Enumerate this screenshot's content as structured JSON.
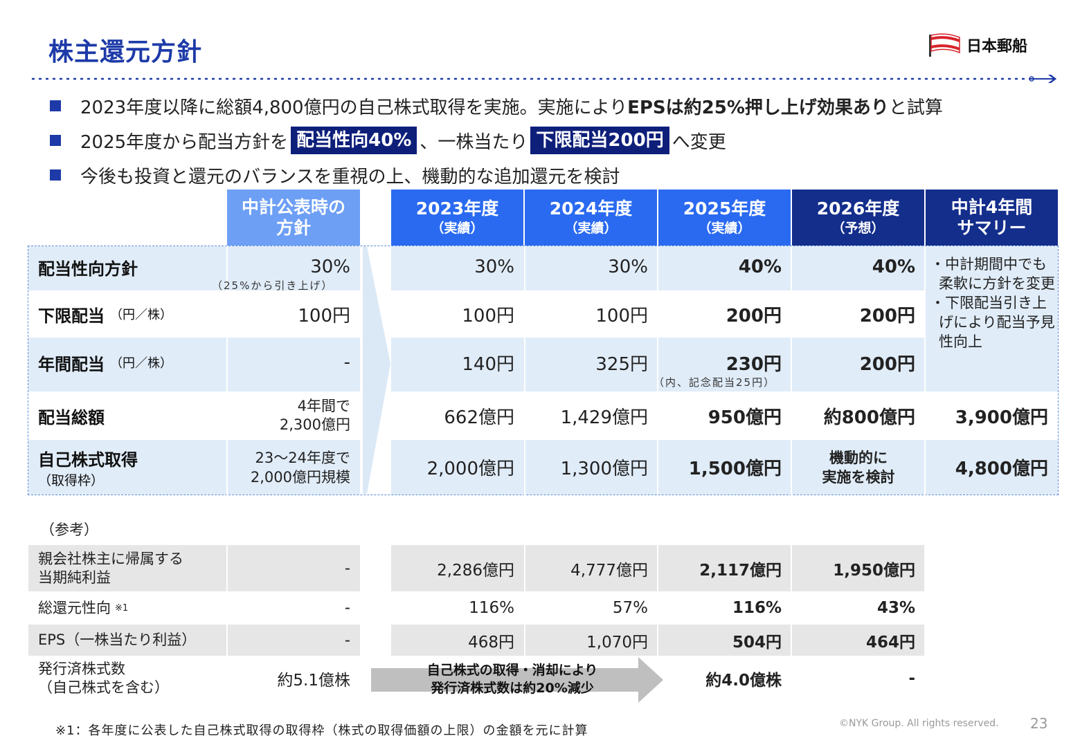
{
  "title": "株主還元方針",
  "logo_text": "日本郵船",
  "bullets": {
    "b1_pre": "2023年度以降に総額4,800億円の自己株式取得を実施。実施により",
    "b1_bold": "EPSは約25%押し上げ効果あり",
    "b1_post": "と試算",
    "b2_pre": "2025年度から配当方針を",
    "b2_hl1": "配当性向40%",
    "b2_mid": "、一株当たり",
    "b2_hl2": "下限配当200円",
    "b2_post": "へ変更",
    "b3": "今後も投資と還元のバランスを重視の上、機動的な追加還元を検討"
  },
  "headers": {
    "plan": [
      "中計公表時の",
      "方針"
    ],
    "y2023": [
      "2023年度",
      "（実績）"
    ],
    "y2024": [
      "2024年度",
      "（実績）"
    ],
    "y2025": [
      "2025年度",
      "（実績）"
    ],
    "y2026": [
      "2026年度",
      "（予想）"
    ],
    "summary": [
      "中計4年間",
      "サマリー"
    ]
  },
  "rows": {
    "payout": {
      "label": "配当性向方針",
      "plan": "30%",
      "plan_note": "（25%から引き上げ）",
      "y2023": "30%",
      "y2024": "30%",
      "y2025": "40%",
      "y2026": "40%"
    },
    "mindiv": {
      "label": "下限配当",
      "unit": "（円／株）",
      "plan": "100円",
      "y2023": "100円",
      "y2024": "100円",
      "y2025": "200円",
      "y2026": "200円"
    },
    "annual": {
      "label": "年間配当",
      "unit": "（円／株）",
      "plan": "-",
      "y2023": "140円",
      "y2024": "325円",
      "y2025": "230円",
      "y2025_note": "（内、記念配当25円）",
      "y2026": "200円"
    },
    "total": {
      "label": "配当総額",
      "plan_l1": "4年間で",
      "plan_l2": "2,300億円",
      "y2023": "662億円",
      "y2024": "1,429億円",
      "y2025": "950億円",
      "y2026": "約800億円",
      "summary": "3,900億円"
    },
    "buyback": {
      "label": "自己株式取得",
      "sub": "（取得枠）",
      "plan_l1": "23〜24年度で",
      "plan_l2": "2,000億円規模",
      "y2023": "2,000億円",
      "y2024": "1,300億円",
      "y2025": "1,500億円",
      "y2026_l1": "機動的に",
      "y2026_l2": "実施を検討",
      "summary": "4,800億円"
    }
  },
  "summary_notes": [
    "・中計期間中でも柔軟に方針を変更",
    "・下限配当引き上げにより配当予見性向上"
  ],
  "reference": {
    "title": "（参考）",
    "net_income": {
      "label_l1": "親会社株主に帰属する",
      "label_l2": "当期純利益",
      "plan": "-",
      "y2023": "2,286億円",
      "y2024": "4,777億円",
      "y2025": "2,117億円",
      "y2026": "1,950億円"
    },
    "total_return": {
      "label": "総還元性向",
      "mark": "※1",
      "plan": "-",
      "y2023": "116%",
      "y2024": "57%",
      "y2025": "116%",
      "y2026": "43%"
    },
    "eps": {
      "label": "EPS（一株当たり利益）",
      "plan": "-",
      "y2023": "468円",
      "y2024": "1,070円",
      "y2025": "504円",
      "y2026": "464円"
    },
    "shares": {
      "label_l1": "発行済株式数",
      "label_l2": "（自己株式を含む）",
      "plan": "約5.1億株",
      "arrow_l1": "自己株式の取得・消却により",
      "arrow_l2": "発行済株式数は約20%減少",
      "y2025": "約4.0億株",
      "y2026": "-"
    }
  },
  "footnote": "※1：各年度に公表した自己株式取得の取得枠（株式の取得価額の上限）の金額を元に計算",
  "copyright": "©NYK Group. All rights reserved.",
  "page_number": "23",
  "colors": {
    "accent": "#1d3aa8",
    "header_blue": "#2a6af0",
    "header_navy": "#142e8c",
    "plan_header": "#6d9ff5",
    "row_light": "#e0ecf8"
  }
}
